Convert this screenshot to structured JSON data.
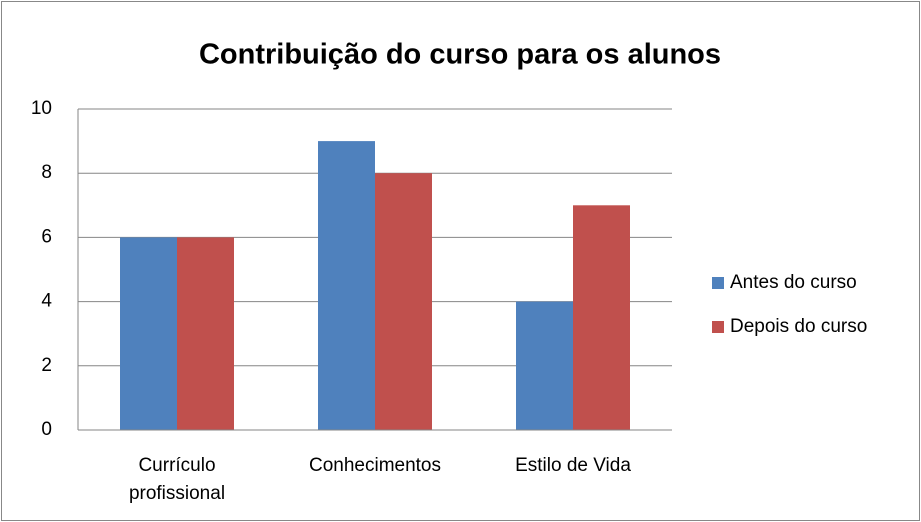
{
  "chart_data": {
    "type": "bar",
    "title": "Contribuição do curso para os alunos",
    "categories": [
      "Currículo profissional",
      "Conhecimentos",
      "Estilo de Vida"
    ],
    "series": [
      {
        "name": "Antes do curso",
        "color": "#4f81bd",
        "values": [
          6,
          9,
          4
        ]
      },
      {
        "name": "Depois do curso",
        "color": "#c0504d",
        "values": [
          6,
          8,
          7
        ]
      }
    ],
    "ylim": [
      0,
      10
    ],
    "yticks": [
      0,
      2,
      4,
      6,
      8,
      10
    ],
    "grid": true,
    "legend": "right"
  }
}
